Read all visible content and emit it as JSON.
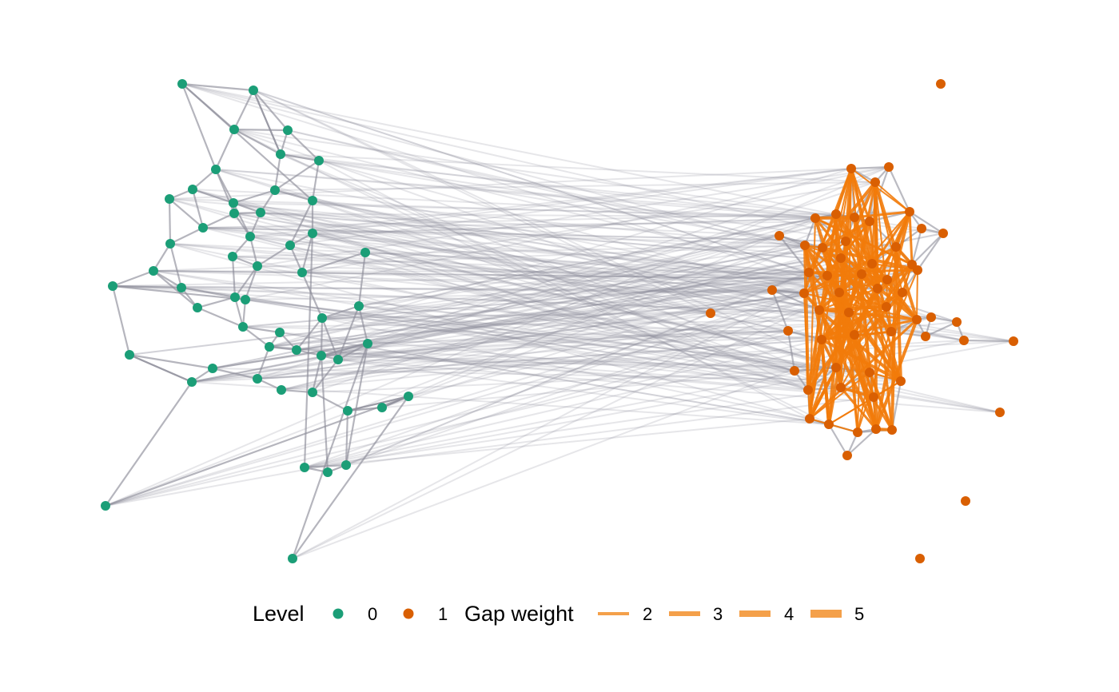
{
  "legend": {
    "level_title": "Level",
    "level_items": [
      {
        "label": "0",
        "color": "#1b9e77"
      },
      {
        "label": "1",
        "color": "#d95f02"
      }
    ],
    "weight_title": "Gap weight",
    "weight_items": [
      {
        "label": "2",
        "width": 2
      },
      {
        "label": "3",
        "width": 3
      },
      {
        "label": "4",
        "width": 4
      },
      {
        "label": "5",
        "width": 5
      }
    ],
    "gap_color": "#f4a04a"
  },
  "colors": {
    "level0": "#1b9e77",
    "level1": "#d95f02",
    "edge": "#8e8e99",
    "gap_edge": "#f27b0a"
  }
}
